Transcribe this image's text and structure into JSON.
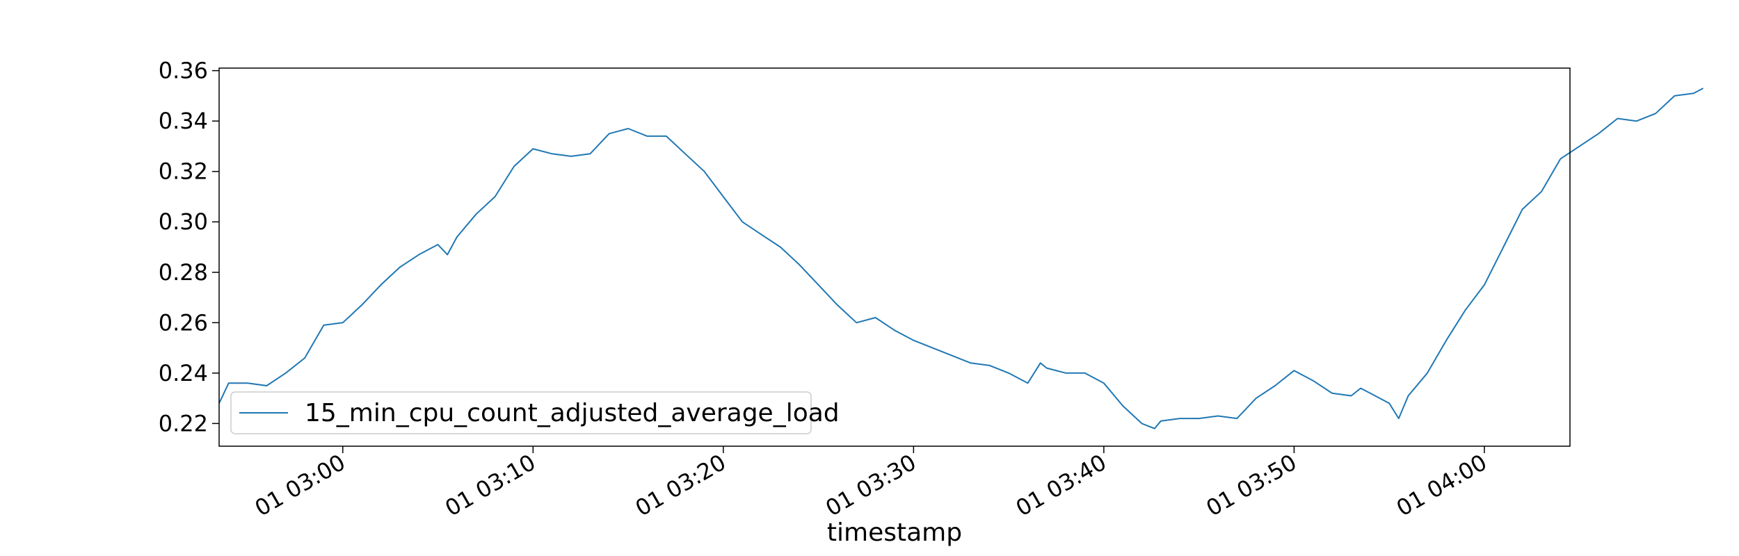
{
  "chart_data": {
    "type": "line",
    "title": "",
    "xlabel": "timestamp",
    "ylabel": "",
    "x_start": "01 02:53:30",
    "x_end": "01 04:04:30",
    "xlim": [
      "01 02:53:30",
      "01 04:04:30"
    ],
    "ylim": [
      0.211,
      0.361
    ],
    "x_ticks": [
      {
        "value": "01 03:00",
        "label": "01 03:00"
      },
      {
        "value": "01 03:10",
        "label": "01 03:10"
      },
      {
        "value": "01 03:20",
        "label": "01 03:20"
      },
      {
        "value": "01 03:30",
        "label": "01 03:30"
      },
      {
        "value": "01 03:40",
        "label": "01 03:40"
      },
      {
        "value": "01 03:50",
        "label": "01 03:50"
      },
      {
        "value": "01 04:00",
        "label": "01 04:00"
      }
    ],
    "y_ticks": [
      {
        "value": 0.22,
        "label": "0.22"
      },
      {
        "value": 0.24,
        "label": "0.24"
      },
      {
        "value": 0.26,
        "label": "0.26"
      },
      {
        "value": 0.28,
        "label": "0.28"
      },
      {
        "value": 0.3,
        "label": "0.30"
      },
      {
        "value": 0.32,
        "label": "0.32"
      },
      {
        "value": 0.34,
        "label": "0.34"
      },
      {
        "value": 0.36,
        "label": "0.36"
      }
    ],
    "grid": false,
    "legend_position": "lower-left",
    "series": [
      {
        "name": "15_min_cpu_count_adjusted_average_load",
        "color": "#1f77b4",
        "points": [
          [
            "01 02:53:30",
            0.228
          ],
          [
            "01 02:54:00",
            0.236
          ],
          [
            "01 02:55:00",
            0.236
          ],
          [
            "01 02:56:00",
            0.235
          ],
          [
            "01 02:57:00",
            0.24
          ],
          [
            "01 02:58:00",
            0.246
          ],
          [
            "01 02:59:00",
            0.259
          ],
          [
            "01 03:00:00",
            0.26
          ],
          [
            "01 03:01:00",
            0.267
          ],
          [
            "01 03:02:00",
            0.275
          ],
          [
            "01 03:03:00",
            0.282
          ],
          [
            "01 03:04:00",
            0.287
          ],
          [
            "01 03:05:00",
            0.291
          ],
          [
            "01 03:05:30",
            0.287
          ],
          [
            "01 03:06:00",
            0.294
          ],
          [
            "01 03:07:00",
            0.303
          ],
          [
            "01 03:08:00",
            0.31
          ],
          [
            "01 03:09:00",
            0.322
          ],
          [
            "01 03:10:00",
            0.329
          ],
          [
            "01 03:11:00",
            0.327
          ],
          [
            "01 03:12:00",
            0.326
          ],
          [
            "01 03:13:00",
            0.327
          ],
          [
            "01 03:14:00",
            0.335
          ],
          [
            "01 03:15:00",
            0.337
          ],
          [
            "01 03:16:00",
            0.334
          ],
          [
            "01 03:17:00",
            0.334
          ],
          [
            "01 03:18:00",
            0.327
          ],
          [
            "01 03:19:00",
            0.32
          ],
          [
            "01 03:20:00",
            0.31
          ],
          [
            "01 03:21:00",
            0.3
          ],
          [
            "01 03:22:00",
            0.295
          ],
          [
            "01 03:23:00",
            0.29
          ],
          [
            "01 03:24:00",
            0.283
          ],
          [
            "01 03:25:00",
            0.275
          ],
          [
            "01 03:26:00",
            0.267
          ],
          [
            "01 03:27:00",
            0.26
          ],
          [
            "01 03:28:00",
            0.262
          ],
          [
            "01 03:29:00",
            0.257
          ],
          [
            "01 03:30:00",
            0.253
          ],
          [
            "01 03:31:00",
            0.25
          ],
          [
            "01 03:32:00",
            0.247
          ],
          [
            "01 03:33:00",
            0.244
          ],
          [
            "01 03:34:00",
            0.243
          ],
          [
            "01 03:35:00",
            0.24
          ],
          [
            "01 03:36:00",
            0.236
          ],
          [
            "01 03:36:40",
            0.244
          ],
          [
            "01 03:37:00",
            0.242
          ],
          [
            "01 03:38:00",
            0.24
          ],
          [
            "01 03:39:00",
            0.24
          ],
          [
            "01 03:40:00",
            0.236
          ],
          [
            "01 03:41:00",
            0.227
          ],
          [
            "01 03:42:00",
            0.22
          ],
          [
            "01 03:42:40",
            0.218
          ],
          [
            "01 03:43:00",
            0.221
          ],
          [
            "01 03:44:00",
            0.222
          ],
          [
            "01 03:45:00",
            0.222
          ],
          [
            "01 03:46:00",
            0.223
          ],
          [
            "01 03:47:00",
            0.222
          ],
          [
            "01 03:48:00",
            0.23
          ],
          [
            "01 03:49:00",
            0.235
          ],
          [
            "01 03:50:00",
            0.241
          ],
          [
            "01 03:51:00",
            0.237
          ],
          [
            "01 03:52:00",
            0.232
          ],
          [
            "01 03:53:00",
            0.231
          ],
          [
            "01 03:53:30",
            0.234
          ],
          [
            "01 03:54:00",
            0.232
          ],
          [
            "01 03:55:00",
            0.228
          ],
          [
            "01 03:55:30",
            0.222
          ],
          [
            "01 03:56:00",
            0.231
          ],
          [
            "01 03:57:00",
            0.24
          ],
          [
            "01 03:58:00",
            0.253
          ],
          [
            "01 03:59:00",
            0.265
          ],
          [
            "01 04:00:00",
            0.275
          ],
          [
            "01 04:01:00",
            0.29
          ],
          [
            "01 04:02:00",
            0.305
          ],
          [
            "01 04:03:00",
            0.312
          ],
          [
            "01 04:04:00",
            0.325
          ],
          [
            "01 04:05:00",
            0.33
          ],
          [
            "01 04:06:00",
            0.335
          ],
          [
            "01 04:07:00",
            0.341
          ],
          [
            "01 04:08:00",
            0.34
          ],
          [
            "01 04:09:00",
            0.343
          ],
          [
            "01 04:10:00",
            0.35
          ],
          [
            "01 04:11:00",
            0.351
          ],
          [
            "01 04:11:30",
            0.353
          ]
        ]
      }
    ]
  }
}
